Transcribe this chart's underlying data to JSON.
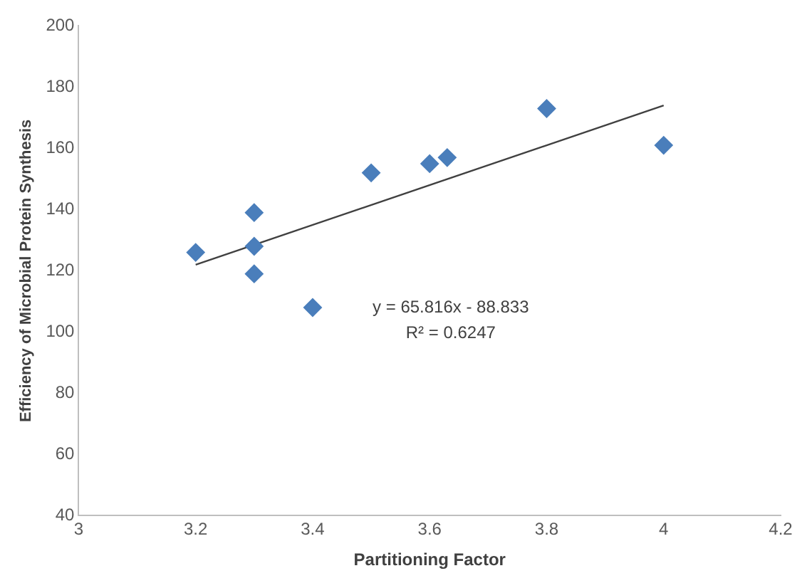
{
  "chart_data": {
    "type": "scatter",
    "xlabel": "Partitioning Factor",
    "ylabel": "Efficiency of Microbial Protein Synthesis",
    "xlim": [
      3,
      4.2
    ],
    "xticks": [
      3,
      3.2,
      3.4,
      3.6,
      3.8,
      4,
      4.2
    ],
    "ylim": [
      40,
      200
    ],
    "yticks": [
      40,
      60,
      80,
      100,
      120,
      140,
      160,
      180,
      200
    ],
    "grid": false,
    "legend": false,
    "marker": "diamond",
    "series": [
      {
        "color": "#4a7ebb",
        "x": [
          3.2,
          3.3,
          3.3,
          3.3,
          3.4,
          3.5,
          3.6,
          3.63,
          3.8,
          4.0
        ],
        "values": [
          126,
          139,
          128,
          119,
          108,
          152,
          155,
          157,
          173,
          161
        ]
      },
      {
        "type": "line",
        "color": "#404040",
        "x": [
          3.2,
          4.0
        ],
        "values": [
          122,
          174
        ],
        "marker": "none",
        "line_style": "solid"
      }
    ],
    "annotations": [
      "y = 65.816x - 88.833",
      "R² = 0.6247"
    ]
  }
}
